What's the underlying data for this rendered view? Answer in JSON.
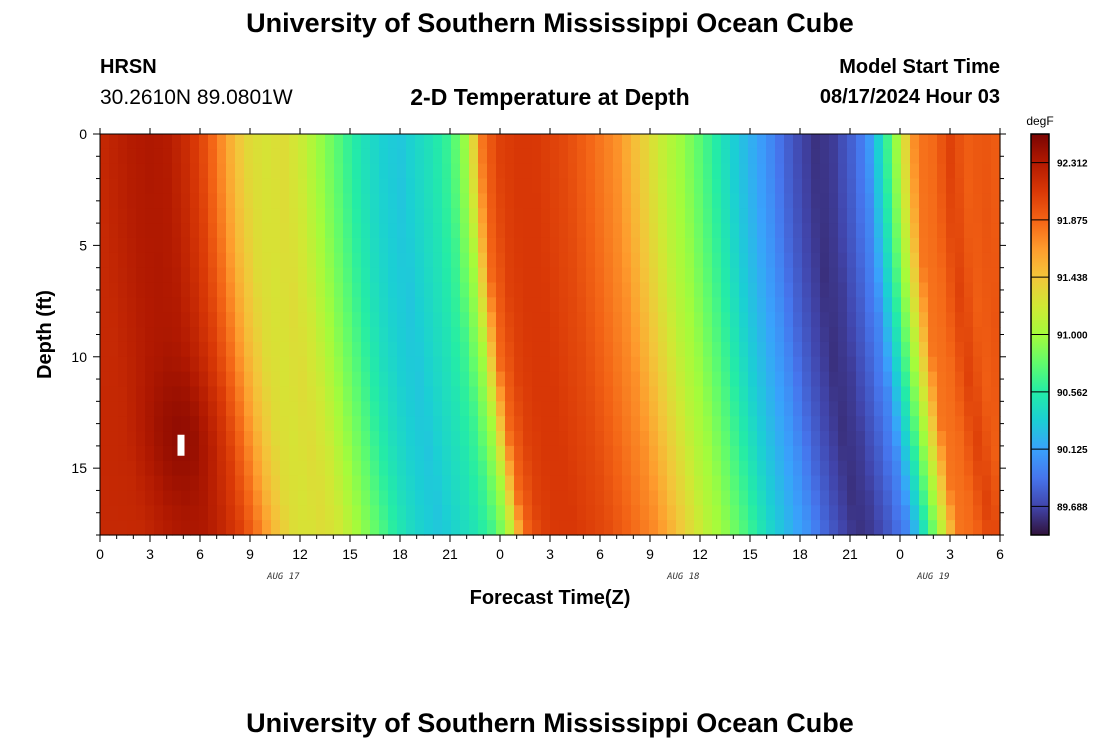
{
  "header": {
    "title": "University of Southern Mississippi Ocean Cube",
    "station": "HRSN",
    "coordinates": "30.2610N  89.0801W",
    "subtitle": "2-D Temperature at Depth",
    "model_start_label": "Model Start Time",
    "model_start_value": "08/17/2024 Hour 03"
  },
  "footer": {
    "title": "University of Southern Mississippi Ocean Cube"
  },
  "colors": {
    "colormap": [
      "#30123b",
      "#4145ab",
      "#4675ed",
      "#39a2fc",
      "#1bcfd4",
      "#24eca6",
      "#61fc6c",
      "#a4fc3b",
      "#d1e834",
      "#f3c63a",
      "#fe9b2d",
      "#f36315",
      "#d93806",
      "#b11901",
      "#7a0402"
    ]
  },
  "chart_data": {
    "type": "heatmap",
    "title": "2-D Temperature at Depth",
    "xlabel": "Forecast Time(Z)",
    "ylabel": "Depth (ft)",
    "x_ticks": [
      "0",
      "3",
      "6",
      "9",
      "12",
      "15",
      "18",
      "21",
      "0",
      "3",
      "6",
      "9",
      "12",
      "15",
      "18",
      "21",
      "0",
      "3",
      "6"
    ],
    "x_range_hours": [
      0,
      54
    ],
    "date_labels": [
      {
        "label": "AUG 17",
        "hour": 11
      },
      {
        "label": "AUG 18",
        "hour": 35
      },
      {
        "label": "AUG 19",
        "hour": 50
      }
    ],
    "y_ticks": [
      "0",
      "5",
      "10",
      "15"
    ],
    "y_range_ft": [
      0,
      18
    ],
    "colorbar": {
      "unit": "degF",
      "range": [
        89.47,
        92.53
      ],
      "tick_values": [
        "92.312",
        "91.875",
        "91.438",
        "91.000",
        "90.562",
        "90.125",
        "89.688"
      ]
    },
    "surface_profile": {
      "hours": [
        0,
        1,
        2,
        3,
        4,
        5,
        6,
        7,
        8,
        9,
        10,
        11,
        12,
        13,
        14,
        15,
        16,
        17,
        18,
        19,
        20,
        21,
        22,
        23,
        24,
        25,
        26,
        27,
        28,
        29,
        30,
        31,
        32,
        33,
        34,
        35,
        36,
        37,
        38,
        39,
        40,
        41,
        42,
        43,
        44,
        45,
        46,
        47,
        48,
        49,
        50,
        51,
        52,
        53,
        54
      ],
      "temperature_degF": [
        92.2,
        92.25,
        92.3,
        92.32,
        92.3,
        92.2,
        92.05,
        91.8,
        91.5,
        91.3,
        91.25,
        91.3,
        91.2,
        91.0,
        90.8,
        90.6,
        90.45,
        90.35,
        90.3,
        90.4,
        90.5,
        90.65,
        91.0,
        91.85,
        92.05,
        92.1,
        92.1,
        92.05,
        92.0,
        91.9,
        91.8,
        91.7,
        91.5,
        91.3,
        91.1,
        90.95,
        90.75,
        90.55,
        90.35,
        90.2,
        90.05,
        89.85,
        89.7,
        89.6,
        89.65,
        89.8,
        90.0,
        90.5,
        91.1,
        91.8,
        91.85,
        92.05,
        91.9,
        91.95,
        91.9
      ]
    },
    "depth_gradient_note": "Cool bands shift later with increasing depth"
  }
}
